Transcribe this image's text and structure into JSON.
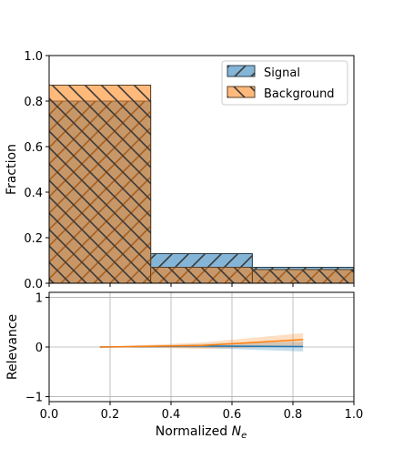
{
  "chart_data": [
    {
      "type": "bar",
      "panel": "top",
      "ylabel": "Fraction",
      "xlim": [
        0.0,
        1.0
      ],
      "ylim": [
        0.0,
        1.0
      ],
      "xticks": [
        "0.0",
        "0.2",
        "0.4",
        "0.6",
        "0.8",
        "1.0"
      ],
      "yticks": [
        "0.0",
        "0.2",
        "0.4",
        "0.6",
        "0.8",
        "1.0"
      ],
      "bin_edges": [
        0.0,
        0.3333,
        0.6667,
        1.0
      ],
      "grid": false,
      "legend_position": "upper-right",
      "series": [
        {
          "name": "Signal",
          "values": [
            0.8,
            0.13,
            0.07
          ],
          "color": "#1f77b4"
        },
        {
          "name": "Background",
          "values": [
            0.87,
            0.07,
            0.06
          ],
          "color": "#ff7f0e"
        }
      ]
    },
    {
      "type": "line",
      "panel": "bottom",
      "xlabel_prefix": "Normalized ",
      "xlabel_symbol": "N",
      "xlabel_subscript": "e",
      "ylabel": "Relevance",
      "xlim": [
        0.0,
        1.0
      ],
      "ylim": [
        -1.1,
        1.1
      ],
      "xticks": [
        "0.0",
        "0.2",
        "0.4",
        "0.6",
        "0.8",
        "1.0"
      ],
      "yticks": [
        "−1",
        "0",
        "1"
      ],
      "ytick_values": [
        -1,
        0,
        1
      ],
      "grid": true,
      "x": [
        0.1667,
        0.5,
        0.8333
      ],
      "series": [
        {
          "name": "Signal",
          "color": "#1f77b4",
          "values": [
            0.0,
            0.02,
            0.01
          ],
          "lower": [
            0.0,
            -0.02,
            -0.09
          ],
          "upper": [
            0.0,
            0.06,
            0.11
          ]
        },
        {
          "name": "Background",
          "color": "#ff7f0e",
          "values": [
            0.0,
            0.03,
            0.15
          ],
          "lower": [
            0.0,
            -0.04,
            0.02
          ],
          "upper": [
            0.0,
            0.09,
            0.28
          ]
        }
      ]
    }
  ]
}
